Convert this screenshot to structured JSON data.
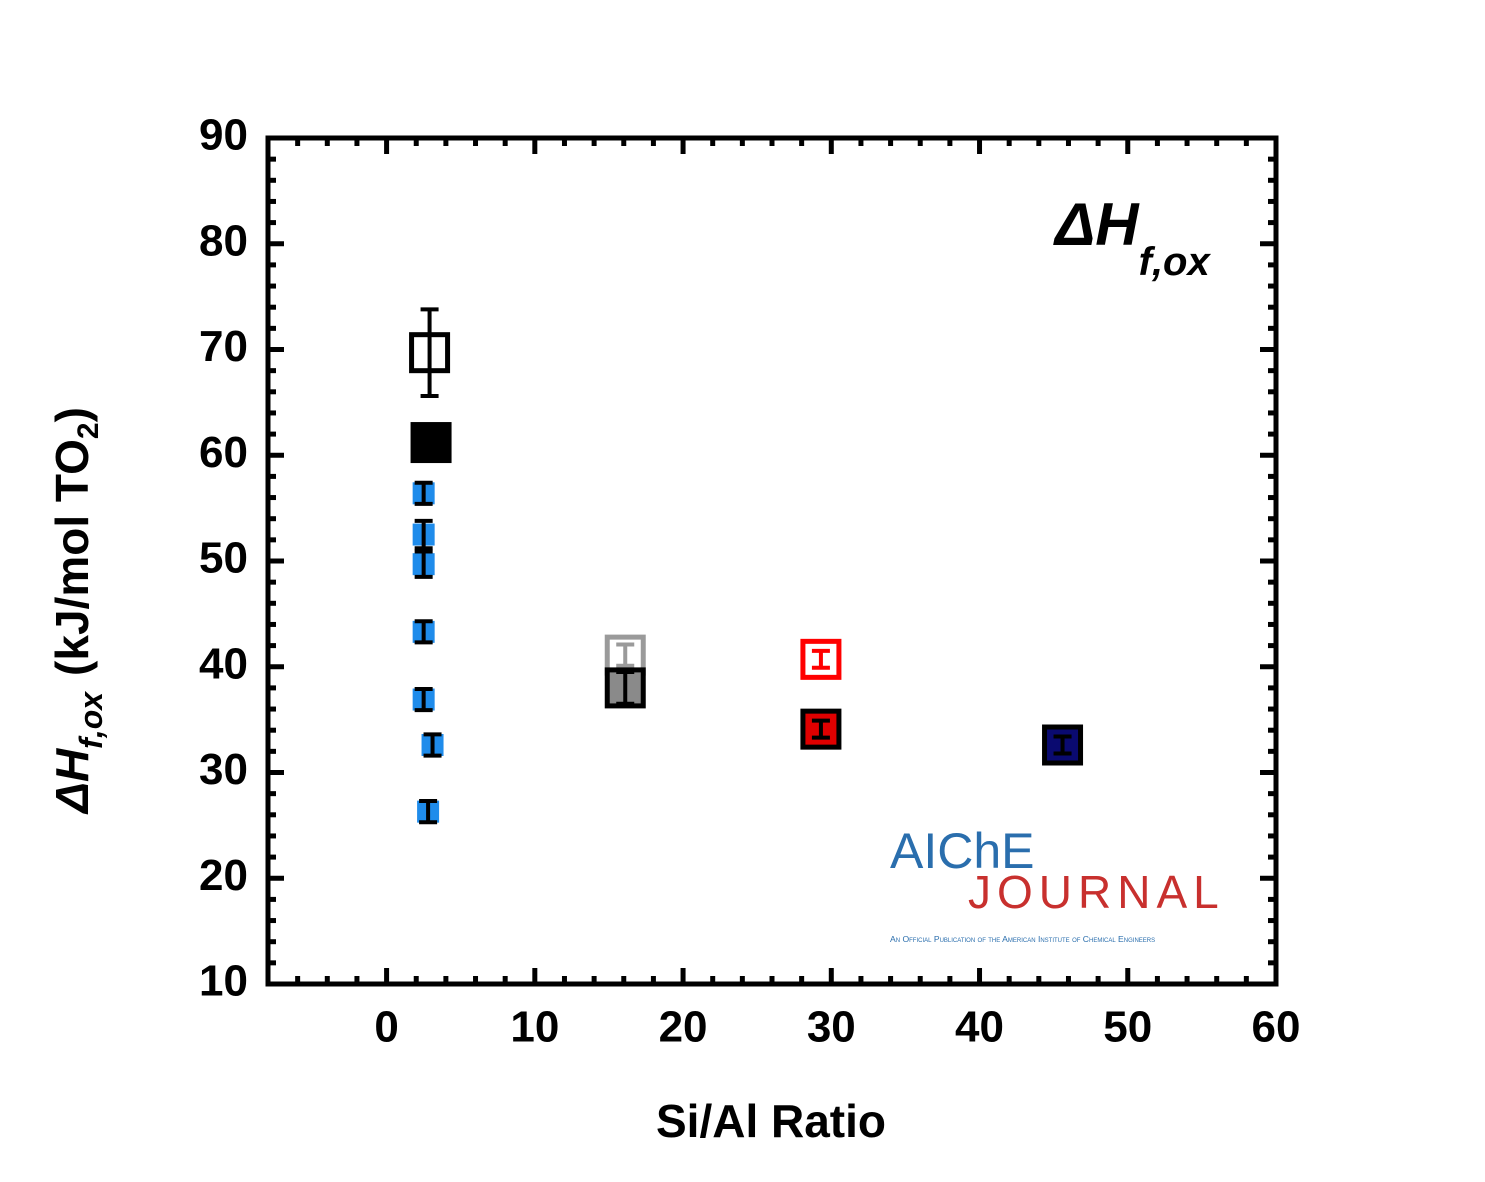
{
  "chart_data": {
    "type": "scatter",
    "annotation": {
      "symbol": "ΔH",
      "sub": "f,ox"
    },
    "xlabel": "Si/Al Ratio",
    "ylabel": {
      "symbol": "ΔH",
      "sub": "f,ox",
      "unit": "(kJ/mol TO",
      "unit_sub": "2",
      "close": ")"
    },
    "xlim": [
      -8,
      60
    ],
    "ylim": [
      10,
      90
    ],
    "xticks": [
      0,
      10,
      20,
      30,
      40,
      50,
      60
    ],
    "yticks": [
      10,
      20,
      30,
      40,
      50,
      60,
      70,
      80,
      90
    ],
    "xminor_ticks": [
      -6,
      -4,
      -2,
      2,
      4,
      6,
      8,
      12,
      14,
      16,
      18,
      22,
      24,
      26,
      28,
      32,
      34,
      36,
      38,
      42,
      44,
      46,
      48,
      52,
      54,
      56,
      58
    ],
    "yminor_ticks": [
      12,
      14,
      16,
      18,
      22,
      24,
      26,
      28,
      32,
      34,
      36,
      38,
      42,
      44,
      46,
      48,
      52,
      54,
      56,
      58,
      62,
      64,
      66,
      68,
      72,
      74,
      76,
      78,
      82,
      84,
      86,
      88
    ],
    "series": [
      {
        "x": [
          2.9
        ],
        "values": [
          69.7
        ],
        "errors": [
          4.1
        ],
        "color": "#ffffff",
        "edge": "#000000",
        "size": "large"
      },
      {
        "x": [
          3.0
        ],
        "values": [
          61.2
        ],
        "errors": [
          0.6
        ],
        "color": "#000000",
        "edge": "#000000",
        "size": "large"
      },
      {
        "x": [
          2.5,
          2.5,
          2.5,
          2.5,
          2.5,
          3.1,
          2.8
        ],
        "values": [
          56.4,
          52.5,
          49.7,
          43.3,
          36.9,
          32.6,
          26.3
        ],
        "errors": [
          1.0,
          1.3,
          1.2,
          1.0,
          1.0,
          1.0,
          1.0
        ],
        "color": "#1f8ceb",
        "edge": "#1f8ceb",
        "size": "small"
      },
      {
        "x": [
          16.1
        ],
        "values": [
          41.1
        ],
        "errors": [
          1.0
        ],
        "color": "#ffffff",
        "edge": "#9a9a9a",
        "size": "large"
      },
      {
        "x": [
          16.1
        ],
        "values": [
          38.0
        ],
        "errors": [
          1.5
        ],
        "color": "#8a8a8a",
        "edge": "#000000",
        "size": "large"
      },
      {
        "x": [
          29.3
        ],
        "values": [
          40.7
        ],
        "errors": [
          0.8
        ],
        "color": "#ffffff",
        "edge": "#ff0000",
        "size": "large"
      },
      {
        "x": [
          29.3
        ],
        "values": [
          34.1
        ],
        "errors": [
          0.8
        ],
        "color": "#e00000",
        "edge": "#000000",
        "size": "large"
      },
      {
        "x": [
          45.6
        ],
        "values": [
          32.6
        ],
        "errors": [
          0.8
        ],
        "color": "#0a0a70",
        "edge": "#000000",
        "size": "large"
      }
    ],
    "watermark": {
      "line1": "AIChE",
      "line2": "JOURNAL",
      "tagline": "An Official Publication of the American Institute of Chemical Engineers"
    }
  }
}
